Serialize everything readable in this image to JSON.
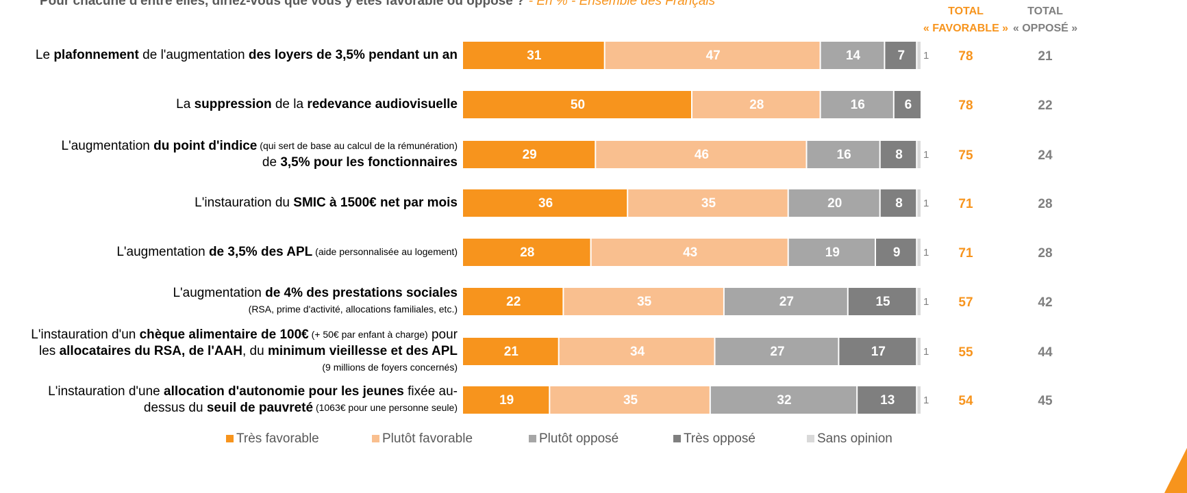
{
  "chart_data": {
    "type": "stacked-bar",
    "orientation": "horizontal",
    "title": "Pour chacune d'entre elles, diriez-vous que vous y êtes favorable ou opposé ?",
    "subtitle": "- En % - Ensemble des Français",
    "categories": [
      [
        [
          {
            "text": "Le "
          },
          {
            "text": "plafonnement",
            "bold": true
          },
          {
            "text": " de l'augmentation "
          },
          {
            "text": "des loyers de 3,5% pendant un an",
            "bold": true
          }
        ]
      ],
      [
        [
          {
            "text": "La "
          },
          {
            "text": "suppression",
            "bold": true
          },
          {
            "text": " de la "
          },
          {
            "text": "redevance audiovisuelle",
            "bold": true
          }
        ]
      ],
      [
        [
          {
            "text": "L'augmentation "
          },
          {
            "text": "du point d'indice",
            "bold": true
          },
          {
            "text": " (qui sert de base au calcul de la rémunération)",
            "small": true
          }
        ],
        [
          {
            "text": "de "
          },
          {
            "text": "3,5% pour les fonctionnaires",
            "bold": true
          }
        ]
      ],
      [
        [
          {
            "text": "L'instauration du "
          },
          {
            "text": "SMIC à 1500€ net par mois",
            "bold": true
          }
        ]
      ],
      [
        [
          {
            "text": "L'augmentation "
          },
          {
            "text": "de 3,5% des APL",
            "bold": true
          },
          {
            "text": " (aide personnalisée au logement)",
            "small": true
          }
        ]
      ],
      [
        [
          {
            "text": "L'augmentation "
          },
          {
            "text": "de 4% des prestations sociales",
            "bold": true
          }
        ],
        [
          {
            "text": "(RSA, prime d'activité, allocations familiales, etc.)",
            "small": true
          }
        ]
      ],
      [
        [
          {
            "text": "L'instauration d'un "
          },
          {
            "text": "chèque alimentaire de 100€",
            "bold": true
          },
          {
            "text": " (+ 50€ par enfant à charge)",
            "small": true
          },
          {
            "text": " pour"
          }
        ],
        [
          {
            "text": "les "
          },
          {
            "text": "allocataires du RSA, de l'AAH",
            "bold": true
          },
          {
            "text": ", du "
          },
          {
            "text": "minimum vieillesse et des APL",
            "bold": true
          }
        ],
        [
          {
            "text": "(9 millions de foyers concernés)",
            "small": true
          }
        ]
      ],
      [
        [
          {
            "text": "L'instauration d'une "
          },
          {
            "text": "allocation d'autonomie pour les jeunes",
            "bold": true
          },
          {
            "text": " fixée au-"
          }
        ],
        [
          {
            "text": "dessus du "
          },
          {
            "text": "seuil de pauvreté",
            "bold": true
          },
          {
            "text": " (1063€ pour une personne seule)",
            "small": true
          }
        ]
      ]
    ],
    "series": [
      {
        "name": "Très favorable",
        "color": "#f7941d",
        "values": [
          31,
          50,
          29,
          36,
          28,
          22,
          21,
          19
        ]
      },
      {
        "name": "Plutôt favorable",
        "color": "#f9bf8f",
        "values": [
          47,
          28,
          46,
          35,
          43,
          35,
          34,
          35
        ]
      },
      {
        "name": "Plutôt opposé",
        "color": "#a6a6a6",
        "values": [
          14,
          16,
          16,
          20,
          19,
          27,
          27,
          32
        ]
      },
      {
        "name": "Très opposé",
        "color": "#7f7f7f",
        "values": [
          7,
          6,
          8,
          8,
          9,
          15,
          17,
          13
        ]
      },
      {
        "name": "Sans opinion",
        "color": "#d9d9d9",
        "values": [
          1,
          null,
          1,
          1,
          1,
          1,
          1,
          1
        ]
      }
    ],
    "xlim": [
      0,
      100
    ],
    "totals": [
      {
        "header": [
          "TOTAL",
          "« FAVORABLE »"
        ],
        "color": "#f7941d",
        "values": [
          78,
          78,
          75,
          71,
          71,
          57,
          55,
          54
        ]
      },
      {
        "header": [
          "TOTAL",
          "« OPPOSÉ »"
        ],
        "color": "#7f7f7f",
        "values": [
          21,
          22,
          24,
          28,
          28,
          42,
          44,
          45
        ]
      }
    ]
  }
}
